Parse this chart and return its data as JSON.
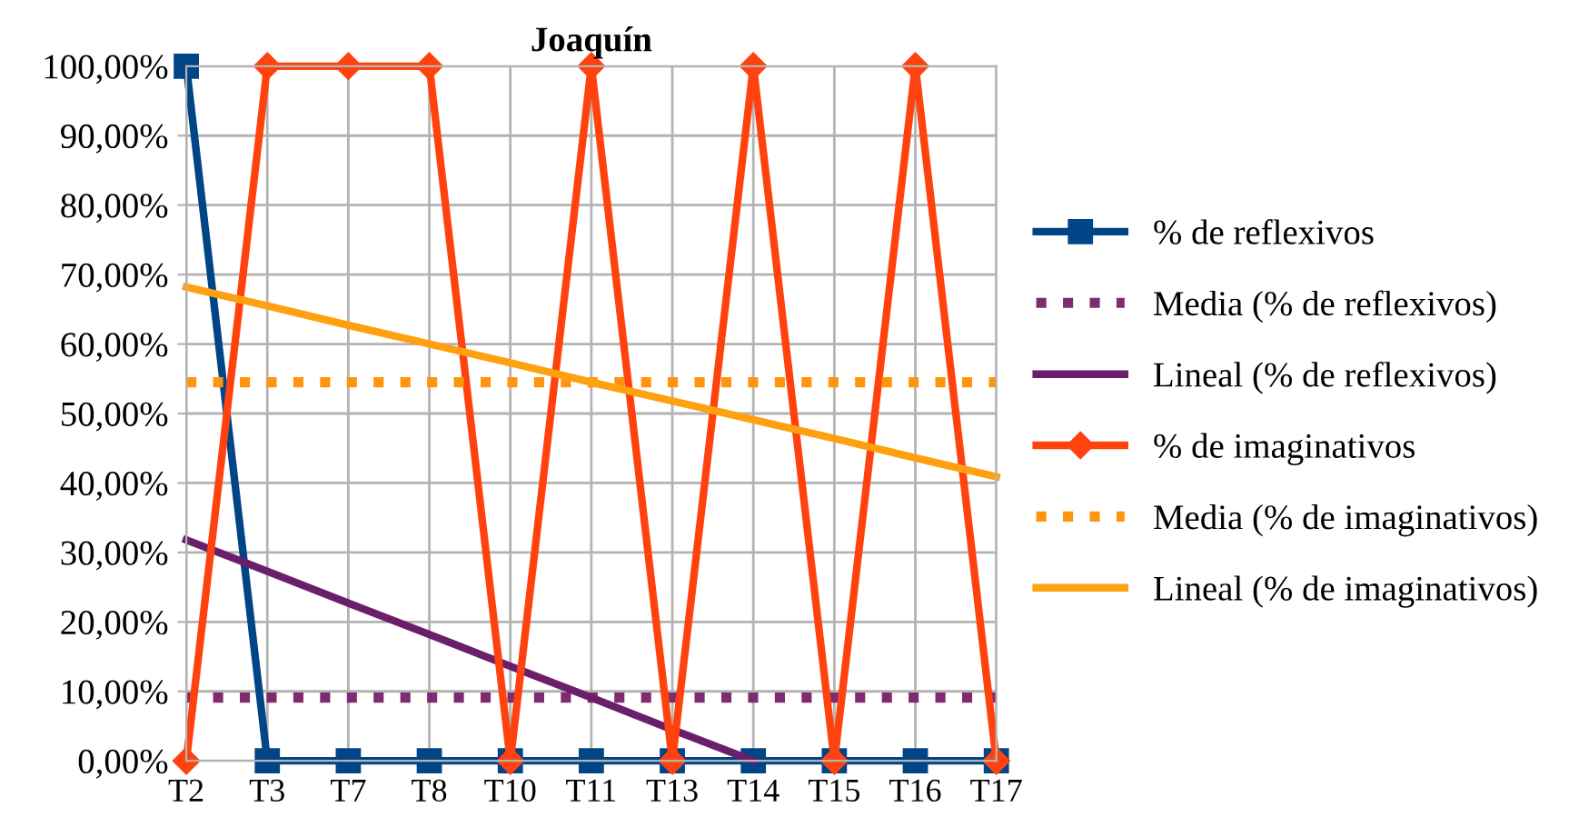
{
  "chart_data": {
    "type": "line",
    "title": "Joaquín",
    "categories": [
      "T2",
      "T3",
      "T7",
      "T8",
      "T10",
      "T11",
      "T13",
      "T14",
      "T15",
      "T16",
      "T17"
    ],
    "series": [
      {
        "name": "% de reflexivos",
        "color": "#004586",
        "marker": "square",
        "line_style": "solid",
        "values": [
          100,
          0,
          0,
          0,
          0,
          0,
          0,
          0,
          0,
          0,
          0
        ]
      },
      {
        "name": "Media (% de reflexivos)",
        "color": "#7e2c6e",
        "marker": "none",
        "line_style": "dotted",
        "values": [
          9.1,
          9.1,
          9.1,
          9.1,
          9.1,
          9.1,
          9.1,
          9.1,
          9.1,
          9.1,
          9.1
        ]
      },
      {
        "name": "Lineal (% de reflexivos)",
        "color": "#6b1f6b",
        "marker": "none",
        "line_style": "solid",
        "values": [
          31.8,
          27.3,
          22.7,
          18.2,
          13.6,
          9.1,
          4.5,
          0,
          null,
          null,
          null
        ]
      },
      {
        "name": "% de imaginativos",
        "color": "#ff420e",
        "marker": "diamond",
        "line_style": "solid",
        "values": [
          0,
          100,
          100,
          100,
          0,
          100,
          0,
          100,
          0,
          100,
          0
        ]
      },
      {
        "name": "Media (% de imaginativos)",
        "color": "#ff950e",
        "marker": "none",
        "line_style": "dotted",
        "values": [
          54.5,
          54.5,
          54.5,
          54.5,
          54.5,
          54.5,
          54.5,
          54.5,
          54.5,
          54.5,
          54.5
        ]
      },
      {
        "name": "Lineal (% de imaginativos)",
        "color": "#ffa010",
        "marker": "none",
        "line_style": "solid",
        "values": [
          68.2,
          65.5,
          62.7,
          60.0,
          57.3,
          54.5,
          51.8,
          49.1,
          46.4,
          43.6,
          40.9
        ]
      }
    ],
    "ylim": [
      0,
      100
    ],
    "yticks": [
      {
        "value": 0,
        "label": "0,00%"
      },
      {
        "value": 10,
        "label": "10,00%"
      },
      {
        "value": 20,
        "label": "20,00%"
      },
      {
        "value": 30,
        "label": "30,00%"
      },
      {
        "value": 40,
        "label": "40,00%"
      },
      {
        "value": 50,
        "label": "50,00%"
      },
      {
        "value": 60,
        "label": "60,00%"
      },
      {
        "value": 70,
        "label": "70,00%"
      },
      {
        "value": 80,
        "label": "80,00%"
      },
      {
        "value": 90,
        "label": "90,00%"
      },
      {
        "value": 100,
        "label": "100,00%"
      }
    ],
    "grid": true,
    "legend": "right"
  }
}
